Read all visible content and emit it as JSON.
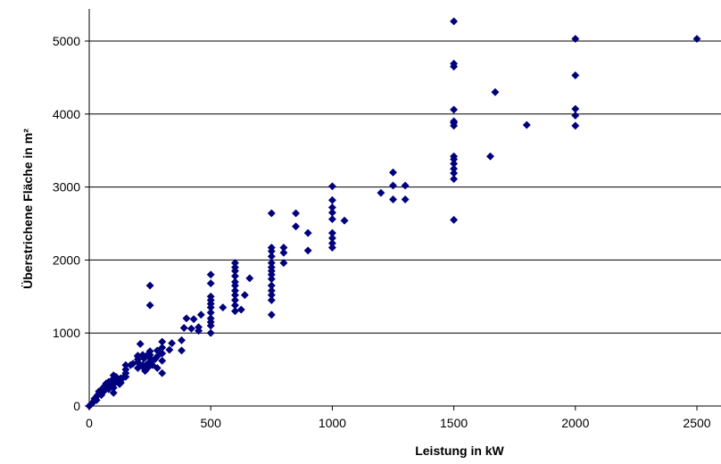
{
  "chart_data": {
    "type": "scatter",
    "title": "",
    "xlabel": "Leistung in kW",
    "ylabel": "Überstrichene Fläche in m²",
    "xlim": [
      0,
      2500
    ],
    "ylim": [
      0,
      5000
    ],
    "x_ticks": [
      "0",
      "500",
      "1000",
      "1500",
      "2000",
      "2500"
    ],
    "y_ticks": [
      "0",
      "1000",
      "2000",
      "3000",
      "4000",
      "5000"
    ],
    "grid": "horizontal",
    "legend": "none",
    "marker": "diamond",
    "marker_color": "#00007f",
    "series": [
      {
        "points": [
          [
            0,
            0
          ],
          [
            5,
            15
          ],
          [
            10,
            30
          ],
          [
            15,
            50
          ],
          [
            20,
            70
          ],
          [
            22,
            100
          ],
          [
            25,
            110
          ],
          [
            30,
            80
          ],
          [
            30,
            130
          ],
          [
            35,
            150
          ],
          [
            40,
            170
          ],
          [
            40,
            200
          ],
          [
            45,
            180
          ],
          [
            50,
            150
          ],
          [
            50,
            220
          ],
          [
            55,
            240
          ],
          [
            60,
            200
          ],
          [
            60,
            260
          ],
          [
            65,
            280
          ],
          [
            70,
            240
          ],
          [
            70,
            310
          ],
          [
            75,
            300
          ],
          [
            80,
            230
          ],
          [
            80,
            270
          ],
          [
            80,
            330
          ],
          [
            85,
            290
          ],
          [
            90,
            340
          ],
          [
            95,
            360
          ],
          [
            100,
            180
          ],
          [
            100,
            250
          ],
          [
            100,
            300
          ],
          [
            100,
            360
          ],
          [
            100,
            420
          ],
          [
            110,
            330
          ],
          [
            110,
            400
          ],
          [
            120,
            350
          ],
          [
            125,
            300
          ],
          [
            130,
            320
          ],
          [
            130,
            380
          ],
          [
            140,
            390
          ],
          [
            150,
            400
          ],
          [
            150,
            450
          ],
          [
            150,
            500
          ],
          [
            150,
            560
          ],
          [
            170,
            560
          ],
          [
            180,
            580
          ],
          [
            200,
            520
          ],
          [
            200,
            600
          ],
          [
            200,
            640
          ],
          [
            200,
            680
          ],
          [
            200,
            690
          ],
          [
            210,
            850
          ],
          [
            220,
            560
          ],
          [
            220,
            700
          ],
          [
            225,
            650
          ],
          [
            225,
            520
          ],
          [
            230,
            480
          ],
          [
            240,
            520
          ],
          [
            240,
            580
          ],
          [
            240,
            700
          ],
          [
            250,
            600
          ],
          [
            250,
            660
          ],
          [
            250,
            700
          ],
          [
            250,
            750
          ],
          [
            250,
            1380
          ],
          [
            250,
            1650
          ],
          [
            260,
            560
          ],
          [
            270,
            640
          ],
          [
            280,
            680
          ],
          [
            280,
            760
          ],
          [
            280,
            520
          ],
          [
            300,
            450
          ],
          [
            300,
            620
          ],
          [
            300,
            720
          ],
          [
            300,
            800
          ],
          [
            300,
            880
          ],
          [
            330,
            770
          ],
          [
            340,
            860
          ],
          [
            380,
            760
          ],
          [
            380,
            900
          ],
          [
            390,
            1070
          ],
          [
            400,
            1200
          ],
          [
            420,
            1060
          ],
          [
            430,
            1190
          ],
          [
            450,
            1030
          ],
          [
            450,
            1080
          ],
          [
            460,
            1250
          ],
          [
            500,
            1000
          ],
          [
            500,
            1100
          ],
          [
            500,
            1150
          ],
          [
            500,
            1200
          ],
          [
            500,
            1280
          ],
          [
            500,
            1350
          ],
          [
            500,
            1400
          ],
          [
            500,
            1450
          ],
          [
            500,
            1500
          ],
          [
            500,
            1680
          ],
          [
            500,
            1800
          ],
          [
            550,
            1350
          ],
          [
            600,
            1300
          ],
          [
            600,
            1380
          ],
          [
            600,
            1450
          ],
          [
            600,
            1520
          ],
          [
            600,
            1580
          ],
          [
            600,
            1650
          ],
          [
            600,
            1700
          ],
          [
            600,
            1780
          ],
          [
            600,
            1850
          ],
          [
            600,
            1900
          ],
          [
            600,
            1960
          ],
          [
            625,
            1320
          ],
          [
            640,
            1520
          ],
          [
            660,
            1750
          ],
          [
            750,
            1250
          ],
          [
            750,
            1450
          ],
          [
            750,
            1520
          ],
          [
            750,
            1580
          ],
          [
            750,
            1650
          ],
          [
            750,
            1740
          ],
          [
            750,
            1800
          ],
          [
            750,
            1850
          ],
          [
            750,
            1900
          ],
          [
            750,
            1960
          ],
          [
            750,
            2050
          ],
          [
            750,
            2120
          ],
          [
            750,
            2170
          ],
          [
            750,
            2640
          ],
          [
            800,
            1960
          ],
          [
            800,
            2100
          ],
          [
            800,
            2170
          ],
          [
            850,
            2460
          ],
          [
            850,
            2640
          ],
          [
            900,
            2130
          ],
          [
            900,
            2370
          ],
          [
            1000,
            2170
          ],
          [
            1000,
            2230
          ],
          [
            1000,
            2300
          ],
          [
            1000,
            2370
          ],
          [
            1000,
            2560
          ],
          [
            1000,
            2650
          ],
          [
            1000,
            2720
          ],
          [
            1000,
            2820
          ],
          [
            1000,
            3010
          ],
          [
            1050,
            2540
          ],
          [
            1200,
            2920
          ],
          [
            1250,
            2830
          ],
          [
            1250,
            3020
          ],
          [
            1250,
            3200
          ],
          [
            1300,
            2830
          ],
          [
            1300,
            3020
          ],
          [
            1500,
            2550
          ],
          [
            1500,
            3110
          ],
          [
            1500,
            3190
          ],
          [
            1500,
            3250
          ],
          [
            1500,
            3320
          ],
          [
            1500,
            3380
          ],
          [
            1500,
            3420
          ],
          [
            1500,
            3840
          ],
          [
            1500,
            3880
          ],
          [
            1500,
            3900
          ],
          [
            1500,
            4060
          ],
          [
            1500,
            4650
          ],
          [
            1500,
            4690
          ],
          [
            1500,
            5270
          ],
          [
            1650,
            3420
          ],
          [
            1670,
            4300
          ],
          [
            1800,
            3850
          ],
          [
            2000,
            3840
          ],
          [
            2000,
            3980
          ],
          [
            2000,
            4070
          ],
          [
            2000,
            4530
          ],
          [
            2000,
            5030
          ],
          [
            2500,
            5030
          ]
        ]
      }
    ]
  }
}
